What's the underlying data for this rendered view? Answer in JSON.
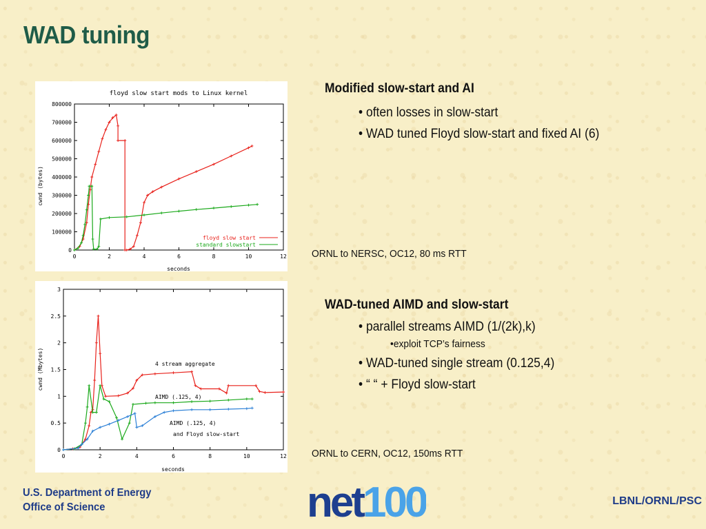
{
  "title": "WAD tuning",
  "section1": {
    "heading": "Modified slow-start and AI",
    "bullets": [
      "• often losses in slow-start",
      "• WAD tuned Floyd slow-start and fixed AI (6)"
    ],
    "caption": "ORNL to NERSC, OC12, 80 ms RTT"
  },
  "section2": {
    "heading": "WAD-tuned AIMD and slow-start",
    "bullet1": "• parallel streams AIMD (1/(2k),k)",
    "sub_bullet": "•exploit TCP’s fairness",
    "bullet2": "• WAD-tuned single stream (0.125,4)",
    "bullet3": "•  “  “  + Floyd slow-start",
    "caption": "ORNL to CERN, OC12, 150ms RTT"
  },
  "footer": {
    "org_line1": "U.S. Department of Energy",
    "org_line2": "Office of Science",
    "right": "LBNL/ORNL/PSC",
    "logo_text": "net100"
  },
  "colors": {
    "title": "#1f5c48",
    "footer": "#1f3c88",
    "red": "#e8201a",
    "green": "#19a819",
    "blue": "#2a7fd6"
  },
  "chart_data": [
    {
      "type": "line",
      "title": "floyd slow start mods to Linux kernel",
      "xlabel": "seconds",
      "ylabel": "cwnd (bytes)",
      "xlim": [
        0,
        12
      ],
      "ylim": [
        0,
        800000
      ],
      "xticks": [
        "0",
        "2",
        "4",
        "6",
        "8",
        "10",
        "12"
      ],
      "yticks": [
        "0",
        "100000",
        "200000",
        "300000",
        "400000",
        "500000",
        "600000",
        "700000",
        "800000"
      ],
      "legend_position": "bottom-right",
      "series": [
        {
          "name": "floyd slow start",
          "color": "#e8201a",
          "points": [
            [
              0,
              0
            ],
            [
              0.3,
              20000
            ],
            [
              0.5,
              60000
            ],
            [
              0.7,
              150000
            ],
            [
              0.8,
              250000
            ],
            [
              0.9,
              330000
            ],
            [
              1.0,
              400000
            ],
            [
              1.2,
              470000
            ],
            [
              1.4,
              540000
            ],
            [
              1.6,
              610000
            ],
            [
              1.8,
              660000
            ],
            [
              2.0,
              700000
            ],
            [
              2.2,
              725000
            ],
            [
              2.4,
              740000
            ],
            [
              2.5,
              680000
            ],
            [
              2.5,
              600000
            ],
            [
              2.9,
              600000
            ],
            [
              2.9,
              0
            ],
            [
              3.0,
              0
            ],
            [
              3.2,
              5000
            ],
            [
              3.4,
              20000
            ],
            [
              3.6,
              80000
            ],
            [
              3.8,
              150000
            ],
            [
              4.0,
              260000
            ],
            [
              4.2,
              300000
            ],
            [
              4.5,
              320000
            ],
            [
              5.0,
              345000
            ],
            [
              6.0,
              390000
            ],
            [
              7.0,
              430000
            ],
            [
              8.0,
              470000
            ],
            [
              9.0,
              515000
            ],
            [
              10.0,
              560000
            ],
            [
              10.2,
              570000
            ]
          ]
        },
        {
          "name": "standard slowstart",
          "color": "#19a819",
          "points": [
            [
              0,
              0
            ],
            [
              0.2,
              10000
            ],
            [
              0.4,
              40000
            ],
            [
              0.5,
              80000
            ],
            [
              0.6,
              140000
            ],
            [
              0.7,
              220000
            ],
            [
              0.8,
              300000
            ],
            [
              0.85,
              350000
            ],
            [
              1.0,
              350000
            ],
            [
              1.05,
              60000
            ],
            [
              1.1,
              5000
            ],
            [
              1.3,
              5000
            ],
            [
              1.4,
              20000
            ],
            [
              1.5,
              170000
            ],
            [
              2.0,
              178000
            ],
            [
              3.0,
              182000
            ],
            [
              4.0,
              192000
            ],
            [
              5.0,
              203000
            ],
            [
              6.0,
              213000
            ],
            [
              7.0,
              222000
            ],
            [
              8.0,
              230000
            ],
            [
              9.0,
              238000
            ],
            [
              10.0,
              246000
            ],
            [
              10.5,
              250000
            ]
          ]
        }
      ]
    },
    {
      "type": "line",
      "title": "",
      "xlabel": "seconds",
      "ylabel": "cwnd (Mbytes)",
      "xlim": [
        0,
        12
      ],
      "ylim": [
        0,
        3
      ],
      "xticks": [
        "0",
        "2",
        "4",
        "6",
        "8",
        "10",
        "12"
      ],
      "yticks": [
        "0",
        "0.5",
        "1",
        "1.5",
        "2",
        "2.5",
        "3"
      ],
      "annotations": [
        "4 stream aggregate",
        "AIMD (.125, 4)",
        "AIMD (.125, 4)",
        "and Floyd slow-start"
      ],
      "series": [
        {
          "name": "4 stream aggregate",
          "color": "#e8201a",
          "points": [
            [
              0,
              0
            ],
            [
              0.5,
              0.02
            ],
            [
              0.9,
              0.05
            ],
            [
              1.2,
              0.2
            ],
            [
              1.4,
              0.45
            ],
            [
              1.5,
              0.7
            ],
            [
              1.6,
              0.75
            ],
            [
              1.7,
              1.3
            ],
            [
              1.8,
              2.0
            ],
            [
              1.9,
              2.5
            ],
            [
              2.0,
              1.8
            ],
            [
              2.1,
              1.2
            ],
            [
              2.3,
              1.0
            ],
            [
              3.0,
              1.01
            ],
            [
              3.5,
              1.06
            ],
            [
              3.8,
              1.15
            ],
            [
              4.0,
              1.3
            ],
            [
              4.3,
              1.4
            ],
            [
              5.0,
              1.42
            ],
            [
              6.0,
              1.44
            ],
            [
              7.0,
              1.46
            ],
            [
              7.2,
              1.2
            ],
            [
              7.5,
              1.14
            ],
            [
              8.5,
              1.14
            ],
            [
              8.9,
              1.06
            ],
            [
              9.0,
              1.2
            ],
            [
              10.5,
              1.2
            ],
            [
              10.7,
              1.09
            ],
            [
              11.0,
              1.07
            ],
            [
              12.0,
              1.08
            ]
          ]
        },
        {
          "name": "AIMD (.125, 4)",
          "color": "#19a819",
          "points": [
            [
              0,
              0
            ],
            [
              0.6,
              0.02
            ],
            [
              1.0,
              0.1
            ],
            [
              1.2,
              0.5
            ],
            [
              1.3,
              0.8
            ],
            [
              1.4,
              1.2
            ],
            [
              1.6,
              0.7
            ],
            [
              1.8,
              0.7
            ],
            [
              2.0,
              1.2
            ],
            [
              2.2,
              0.95
            ],
            [
              2.5,
              0.9
            ],
            [
              2.9,
              0.6
            ],
            [
              3.2,
              0.2
            ],
            [
              3.6,
              0.5
            ],
            [
              3.8,
              0.85
            ],
            [
              4.5,
              0.87
            ],
            [
              5.0,
              0.88
            ],
            [
              6.0,
              0.88
            ],
            [
              7.0,
              0.9
            ],
            [
              8.0,
              0.91
            ],
            [
              9.0,
              0.93
            ],
            [
              10.0,
              0.95
            ],
            [
              10.3,
              0.95
            ]
          ]
        },
        {
          "name": "AIMD (.125, 4) and Floyd slow-start",
          "color": "#2a7fd6",
          "points": [
            [
              0,
              0
            ],
            [
              0.8,
              0.03
            ],
            [
              1.0,
              0.1
            ],
            [
              1.3,
              0.2
            ],
            [
              1.6,
              0.35
            ],
            [
              2.0,
              0.42
            ],
            [
              2.5,
              0.48
            ],
            [
              3.0,
              0.55
            ],
            [
              3.5,
              0.62
            ],
            [
              3.9,
              0.68
            ],
            [
              4.0,
              0.42
            ],
            [
              4.3,
              0.45
            ],
            [
              5.0,
              0.62
            ],
            [
              5.5,
              0.7
            ],
            [
              6.0,
              0.73
            ],
            [
              7.0,
              0.75
            ],
            [
              8.0,
              0.75
            ],
            [
              9.0,
              0.76
            ],
            [
              10.0,
              0.77
            ],
            [
              10.3,
              0.78
            ]
          ]
        }
      ]
    }
  ]
}
